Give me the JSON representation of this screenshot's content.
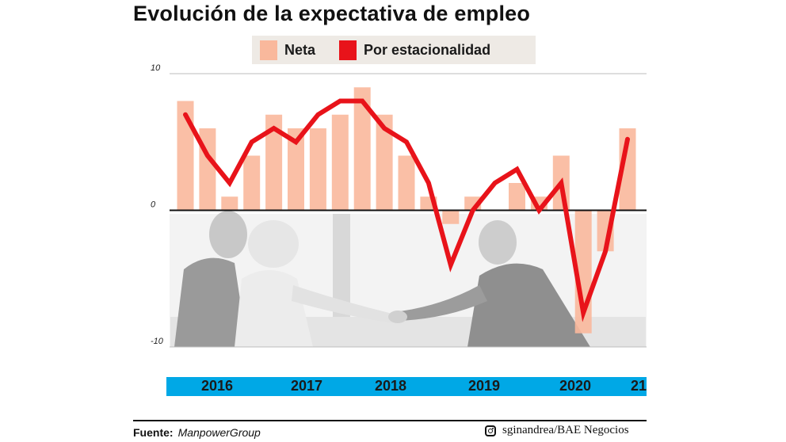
{
  "title": "Evolución de la expectativa de empleo",
  "legend": {
    "neta": "Neta",
    "estacionalidad": "Por estacionalidad"
  },
  "colors": {
    "neta": "#f9b89c",
    "estacionalidad": "#e8131a",
    "year_bar": "#00a8e6",
    "legend_bg": "#eeeae5"
  },
  "chart_data": {
    "type": "bar",
    "ylim": [
      -10,
      10
    ],
    "yticks": [
      "10",
      "0",
      "-10"
    ],
    "xlabels": [
      "2016",
      "2017",
      "2018",
      "2019",
      "2020",
      "21"
    ],
    "series": [
      {
        "name": "Neta",
        "type": "bar",
        "values": [
          8,
          6,
          1,
          4,
          7,
          6,
          6,
          7,
          9,
          7,
          4,
          1,
          -1,
          1,
          0,
          2,
          1,
          4,
          -9,
          -3,
          6
        ]
      },
      {
        "name": "Por estacionalidad",
        "type": "line",
        "values": [
          7,
          4,
          2,
          5,
          6,
          5,
          7,
          8,
          8,
          6,
          5,
          2,
          -4,
          0,
          2,
          3,
          0,
          2,
          -7.5,
          -3,
          5.2
        ]
      }
    ]
  },
  "footer": {
    "source_label": "Fuente:",
    "source_value": "ManpowerGroup",
    "credit": "sginandrea/BAE Negocios",
    "credit_icon": "instagram-icon"
  }
}
